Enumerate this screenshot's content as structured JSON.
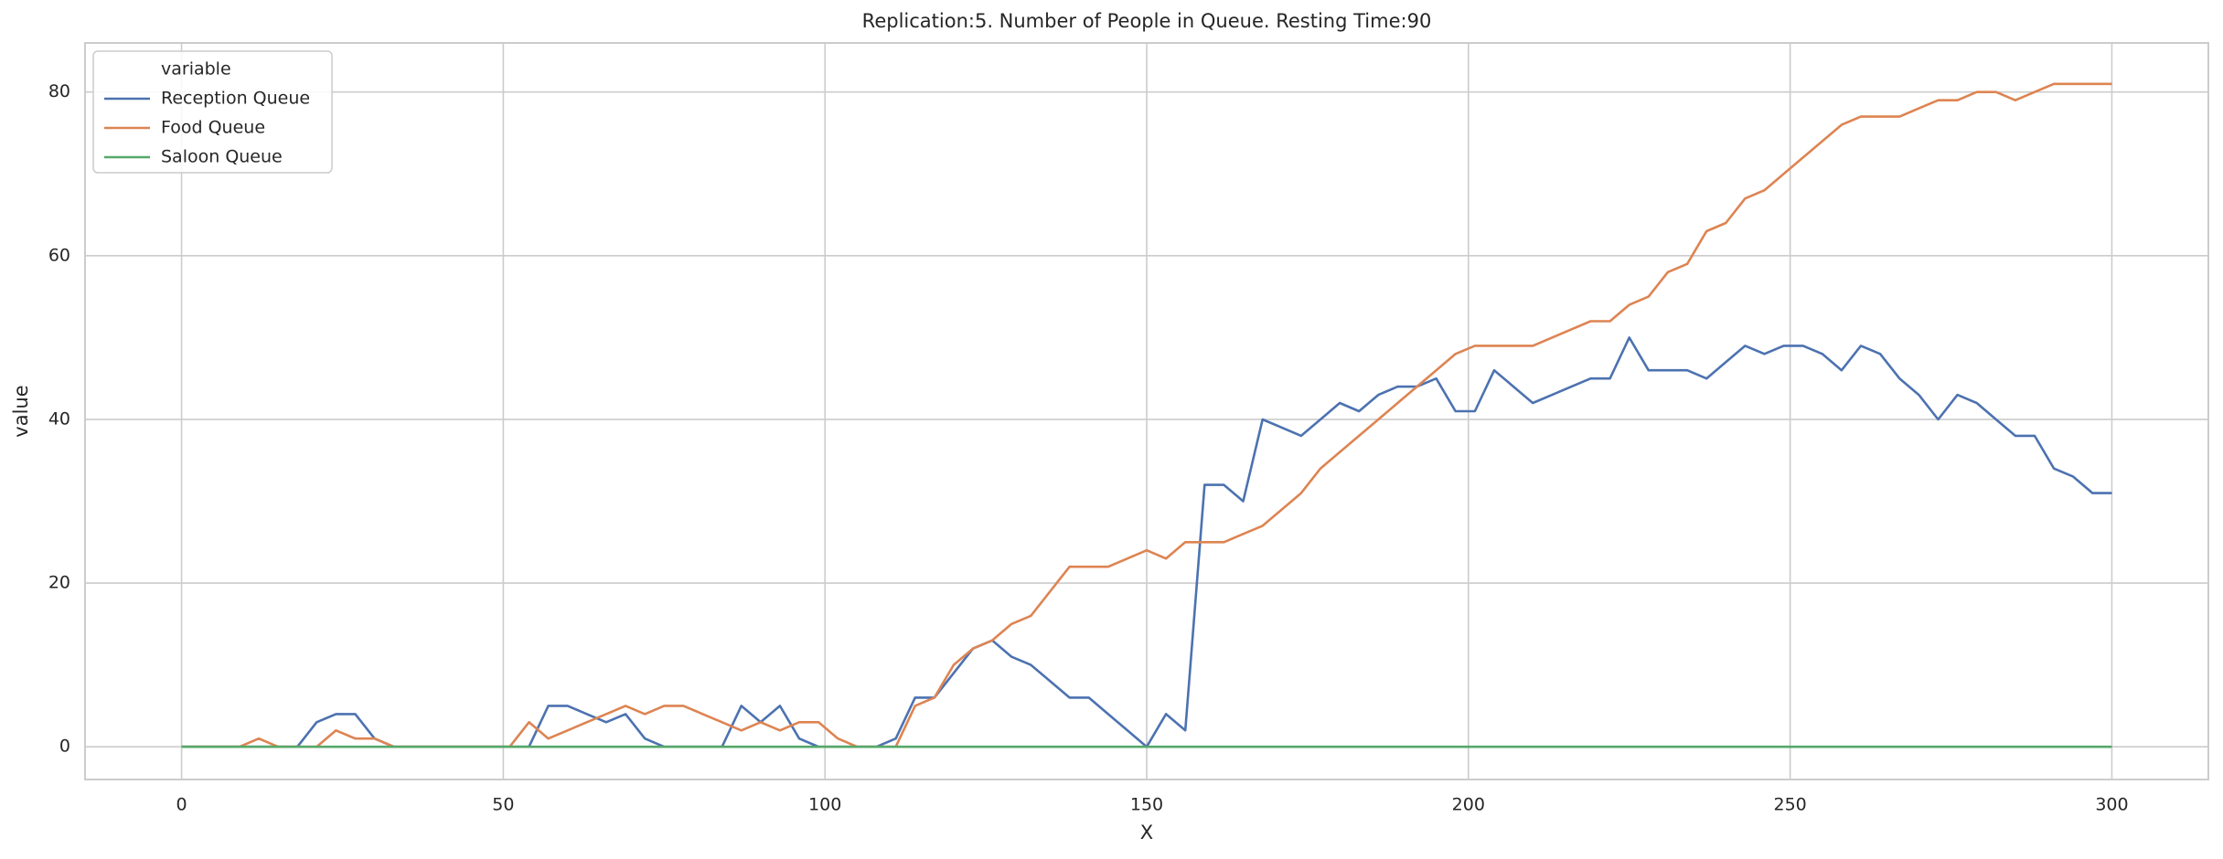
{
  "chart_data": {
    "type": "line",
    "title": "Replication:5. Number of People in Queue. Resting Time:90",
    "xlabel": "X",
    "ylabel": "value",
    "legend_title": "variable",
    "legend": "upper left",
    "grid": true,
    "x": [
      0,
      3,
      6,
      9,
      12,
      15,
      18,
      21,
      24,
      27,
      30,
      33,
      36,
      39,
      42,
      45,
      48,
      51,
      54,
      57,
      60,
      63,
      66,
      69,
      72,
      75,
      78,
      81,
      84,
      87,
      90,
      93,
      96,
      99,
      102,
      105,
      108,
      111,
      114,
      117,
      120,
      123,
      126,
      129,
      132,
      135,
      138,
      141,
      144,
      147,
      150,
      153,
      156,
      159,
      162,
      165,
      168,
      171,
      174,
      177,
      180,
      183,
      186,
      189,
      192,
      195,
      198,
      201,
      204,
      207,
      210,
      213,
      216,
      219,
      222,
      225,
      228,
      231,
      234,
      237,
      240,
      243,
      246,
      249,
      252,
      255,
      258,
      261,
      264,
      267,
      270,
      273,
      276,
      279,
      282,
      285,
      288,
      291,
      294,
      297,
      300
    ],
    "series": [
      {
        "name": "Reception Queue",
        "color": "#4c72b0",
        "values": [
          0,
          0,
          0,
          0,
          0,
          0,
          0,
          3,
          4,
          4,
          1,
          0,
          0,
          0,
          0,
          0,
          0,
          0,
          0,
          5,
          5,
          4,
          3,
          4,
          1,
          0,
          0,
          0,
          0,
          5,
          3,
          5,
          1,
          0,
          0,
          0,
          0,
          1,
          6,
          6,
          9,
          12,
          13,
          11,
          10,
          8,
          6,
          6,
          4,
          2,
          0,
          4,
          2,
          32,
          32,
          30,
          40,
          39,
          38,
          40,
          42,
          41,
          43,
          44,
          44,
          45,
          41,
          41,
          46,
          44,
          42,
          43,
          44,
          45,
          45,
          50,
          46,
          46,
          46,
          45,
          47,
          49,
          48,
          49,
          49,
          48,
          46,
          49,
          48,
          45,
          43,
          40,
          43,
          42,
          40,
          38,
          38,
          34,
          33,
          31,
          31
        ]
      },
      {
        "name": "Food Queue",
        "color": "#dd8452",
        "values": [
          0,
          0,
          0,
          0,
          1,
          0,
          0,
          0,
          2,
          1,
          1,
          0,
          0,
          0,
          0,
          0,
          0,
          0,
          3,
          1,
          2,
          3,
          4,
          5,
          4,
          5,
          5,
          4,
          3,
          2,
          3,
          2,
          3,
          3,
          1,
          0,
          0,
          0,
          5,
          6,
          10,
          12,
          13,
          15,
          16,
          19,
          22,
          22,
          22,
          23,
          24,
          23,
          25,
          25,
          25,
          26,
          27,
          29,
          31,
          34,
          36,
          38,
          40,
          42,
          44,
          46,
          48,
          49,
          49,
          49,
          49,
          50,
          51,
          52,
          52,
          54,
          55,
          58,
          59,
          63,
          64,
          67,
          68,
          70,
          72,
          74,
          76,
          77,
          77,
          77,
          78,
          79,
          79,
          80,
          80,
          79,
          80,
          81,
          81,
          81,
          81
        ]
      },
      {
        "name": "Saloon Queue",
        "color": "#55a868",
        "values": [
          0,
          0,
          0,
          0,
          0,
          0,
          0,
          0,
          0,
          0,
          0,
          0,
          0,
          0,
          0,
          0,
          0,
          0,
          0,
          0,
          0,
          0,
          0,
          0,
          0,
          0,
          0,
          0,
          0,
          0,
          0,
          0,
          0,
          0,
          0,
          0,
          0,
          0,
          0,
          0,
          0,
          0,
          0,
          0,
          0,
          0,
          0,
          0,
          0,
          0,
          0,
          0,
          0,
          0,
          0,
          0,
          0,
          0,
          0,
          0,
          0,
          0,
          0,
          0,
          0,
          0,
          0,
          0,
          0,
          0,
          0,
          0,
          0,
          0,
          0,
          0,
          0,
          0,
          0,
          0,
          0,
          0,
          0,
          0,
          0,
          0,
          0,
          0,
          0,
          0,
          0,
          0,
          0,
          0,
          0,
          0,
          0,
          0,
          0,
          0,
          0
        ]
      }
    ],
    "xlim": [
      -15,
      315
    ],
    "xticks": [
      0,
      50,
      100,
      150,
      200,
      250,
      300
    ],
    "ylim": [
      -4,
      86
    ],
    "yticks": [
      0,
      20,
      40,
      60,
      80
    ]
  }
}
